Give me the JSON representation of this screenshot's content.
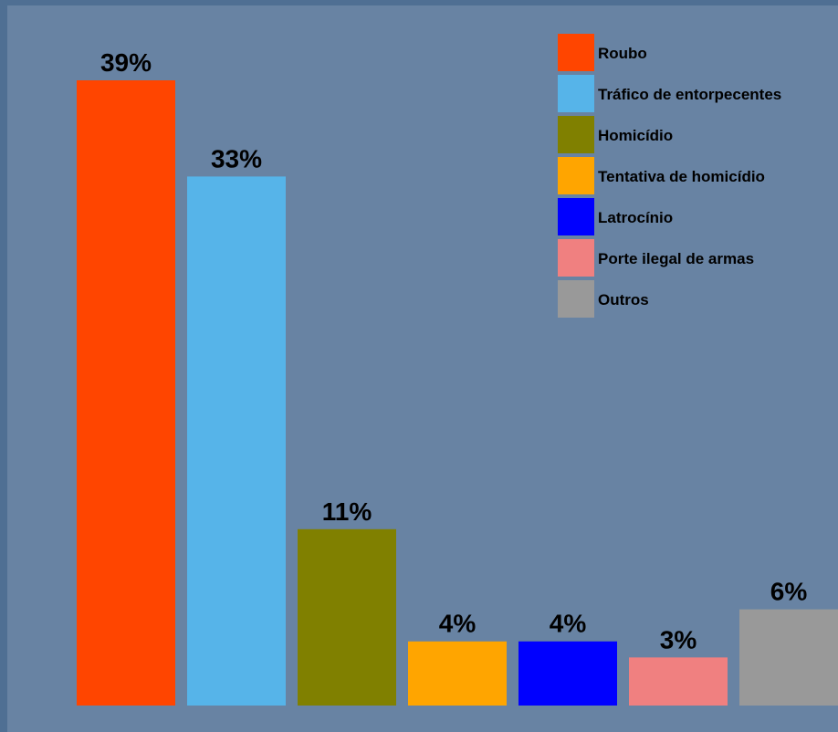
{
  "chart_data": {
    "type": "bar",
    "categories": [
      "Roubo",
      "Tráfico de entorpecentes",
      "Homicídio",
      "Tentativa de homicídio",
      "Latrocínio",
      "Porte ilegal de armas",
      "Outros"
    ],
    "values": [
      39,
      33,
      11,
      4,
      4,
      3,
      6
    ],
    "value_labels": [
      "39%",
      "33%",
      "11%",
      "4%",
      "4%",
      "3%",
      "6%"
    ],
    "colors": [
      "#ff4500",
      "#56b4e9",
      "#808000",
      "#ffa500",
      "#0000ff",
      "#f08080",
      "#999999"
    ],
    "legend_entries": [
      "Roubo",
      "Tráfico de entorpecentes",
      "Homicídio",
      "Tentativa de homicídio",
      "Latrocínio",
      "Porte ilegal de armas",
      "Outros"
    ],
    "legend_position": "top-right",
    "grid": false,
    "ylim": [
      0,
      39
    ],
    "title": "",
    "xlabel": "",
    "ylabel": ""
  }
}
